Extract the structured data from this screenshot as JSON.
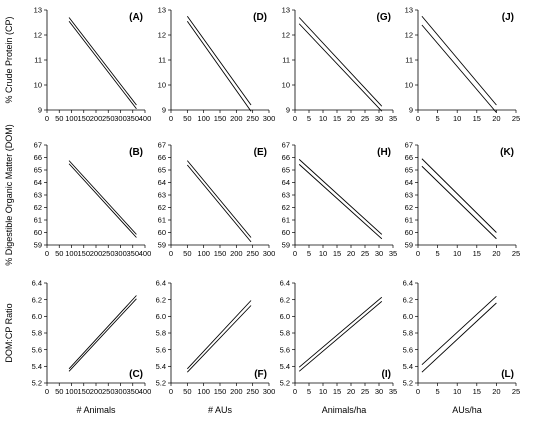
{
  "figure": {
    "row_titles": [
      "% Crude Protein (CP)",
      "% Digestible Organic Matter (DOM)",
      "DOM:CP Ratio"
    ],
    "column_titles": [
      "# Animals",
      "# AUs",
      "Animals/ha",
      "AUs/ha"
    ]
  },
  "chart_data": [
    {
      "type": "line",
      "panel_label": "(A)",
      "xlabel": "",
      "ylabel": "% Crude Protein (CP)",
      "x_ticks": [
        0,
        50,
        100,
        150,
        200,
        250,
        300,
        350,
        400
      ],
      "y_ticks": [
        9,
        10,
        11,
        12,
        13
      ],
      "xlim": [
        0,
        400
      ],
      "ylim": [
        9,
        13
      ],
      "series": [
        {
          "x": [
            90,
            365
          ],
          "y": [
            12.7,
            9.2
          ]
        },
        {
          "x": [
            90,
            365
          ],
          "y": [
            12.55,
            9.05
          ]
        }
      ]
    },
    {
      "type": "line",
      "panel_label": "(D)",
      "xlabel": "",
      "ylabel": "",
      "x_ticks": [
        0,
        50,
        100,
        150,
        200,
        250,
        300
      ],
      "y_ticks": [
        9,
        10,
        11,
        12,
        13
      ],
      "xlim": [
        0,
        300
      ],
      "ylim": [
        9,
        13
      ],
      "series": [
        {
          "x": [
            50,
            245
          ],
          "y": [
            12.75,
            9.2
          ]
        },
        {
          "x": [
            50,
            245
          ],
          "y": [
            12.55,
            8.95
          ]
        }
      ]
    },
    {
      "type": "line",
      "panel_label": "(G)",
      "xlabel": "",
      "ylabel": "",
      "x_ticks": [
        0,
        5,
        10,
        15,
        20,
        25,
        30,
        35
      ],
      "y_ticks": [
        9,
        10,
        11,
        12,
        13
      ],
      "xlim": [
        0,
        35
      ],
      "ylim": [
        9,
        13
      ],
      "series": [
        {
          "x": [
            1.5,
            31
          ],
          "y": [
            12.7,
            9.15
          ]
        },
        {
          "x": [
            1.5,
            31
          ],
          "y": [
            12.45,
            8.95
          ]
        }
      ]
    },
    {
      "type": "line",
      "panel_label": "(J)",
      "xlabel": "",
      "ylabel": "",
      "x_ticks": [
        0,
        5,
        10,
        15,
        20,
        25
      ],
      "y_ticks": [
        9,
        10,
        11,
        12,
        13
      ],
      "xlim": [
        0,
        25
      ],
      "ylim": [
        9,
        13
      ],
      "series": [
        {
          "x": [
            1,
            20
          ],
          "y": [
            12.75,
            9.2
          ]
        },
        {
          "x": [
            1,
            20
          ],
          "y": [
            12.4,
            8.9
          ]
        }
      ]
    },
    {
      "type": "line",
      "panel_label": "(B)",
      "xlabel": "",
      "ylabel": "% Digestible Organic Matter (DOM)",
      "x_ticks": [
        0,
        50,
        100,
        150,
        200,
        250,
        300,
        350,
        400
      ],
      "y_ticks": [
        59,
        60,
        61,
        62,
        63,
        64,
        65,
        66,
        67
      ],
      "xlim": [
        0,
        400
      ],
      "ylim": [
        59,
        67
      ],
      "series": [
        {
          "x": [
            90,
            365
          ],
          "y": [
            65.75,
            59.85
          ]
        },
        {
          "x": [
            90,
            365
          ],
          "y": [
            65.5,
            59.6
          ]
        }
      ]
    },
    {
      "type": "line",
      "panel_label": "(E)",
      "xlabel": "",
      "ylabel": "",
      "x_ticks": [
        0,
        50,
        100,
        150,
        200,
        250,
        300
      ],
      "y_ticks": [
        59,
        60,
        61,
        62,
        63,
        64,
        65,
        66,
        67
      ],
      "xlim": [
        0,
        300
      ],
      "ylim": [
        59,
        67
      ],
      "series": [
        {
          "x": [
            50,
            245
          ],
          "y": [
            65.75,
            59.6
          ]
        },
        {
          "x": [
            50,
            245
          ],
          "y": [
            65.4,
            59.25
          ]
        }
      ]
    },
    {
      "type": "line",
      "panel_label": "(H)",
      "xlabel": "",
      "ylabel": "",
      "x_ticks": [
        0,
        5,
        10,
        15,
        20,
        25,
        30,
        35
      ],
      "y_ticks": [
        59,
        60,
        61,
        62,
        63,
        64,
        65,
        66,
        67
      ],
      "xlim": [
        0,
        35
      ],
      "ylim": [
        59,
        67
      ],
      "series": [
        {
          "x": [
            1.5,
            31
          ],
          "y": [
            65.85,
            59.85
          ]
        },
        {
          "x": [
            1.5,
            31
          ],
          "y": [
            65.45,
            59.5
          ]
        }
      ]
    },
    {
      "type": "line",
      "panel_label": "(K)",
      "xlabel": "",
      "ylabel": "",
      "x_ticks": [
        0,
        5,
        10,
        15,
        20,
        25
      ],
      "y_ticks": [
        59,
        60,
        61,
        62,
        63,
        64,
        65,
        66,
        67
      ],
      "xlim": [
        0,
        25
      ],
      "ylim": [
        59,
        67
      ],
      "series": [
        {
          "x": [
            1,
            20
          ],
          "y": [
            65.9,
            60.0
          ]
        },
        {
          "x": [
            1,
            20
          ],
          "y": [
            65.3,
            59.5
          ]
        }
      ]
    },
    {
      "type": "line",
      "panel_label": "(C)",
      "xlabel": "# Animals",
      "ylabel": "DOM:CP Ratio",
      "x_ticks": [
        0,
        50,
        100,
        150,
        200,
        250,
        300,
        350,
        400
      ],
      "y_ticks": [
        5.2,
        5.4,
        5.6,
        5.8,
        6.0,
        6.2,
        6.4
      ],
      "xlim": [
        0,
        400
      ],
      "ylim": [
        5.2,
        6.4
      ],
      "series": [
        {
          "x": [
            90,
            365
          ],
          "y": [
            5.37,
            6.25
          ]
        },
        {
          "x": [
            90,
            365
          ],
          "y": [
            5.34,
            6.21
          ]
        }
      ]
    },
    {
      "type": "line",
      "panel_label": "(F)",
      "xlabel": "# AUs",
      "ylabel": "",
      "x_ticks": [
        0,
        50,
        100,
        150,
        200,
        250,
        300
      ],
      "y_ticks": [
        5.2,
        5.4,
        5.6,
        5.8,
        6.0,
        6.2,
        6.4
      ],
      "xlim": [
        0,
        300
      ],
      "ylim": [
        5.2,
        6.4
      ],
      "series": [
        {
          "x": [
            50,
            245
          ],
          "y": [
            5.37,
            6.19
          ]
        },
        {
          "x": [
            50,
            245
          ],
          "y": [
            5.33,
            6.13
          ]
        }
      ]
    },
    {
      "type": "line",
      "panel_label": "(I)",
      "xlabel": "Animals/ha",
      "ylabel": "",
      "x_ticks": [
        0,
        5,
        10,
        15,
        20,
        25,
        30,
        35
      ],
      "y_ticks": [
        5.2,
        5.4,
        5.6,
        5.8,
        6.0,
        6.2,
        6.4
      ],
      "xlim": [
        0,
        35
      ],
      "ylim": [
        5.2,
        6.4
      ],
      "series": [
        {
          "x": [
            1.5,
            31
          ],
          "y": [
            5.39,
            6.23
          ]
        },
        {
          "x": [
            1.5,
            31
          ],
          "y": [
            5.34,
            6.18
          ]
        }
      ]
    },
    {
      "type": "line",
      "panel_label": "(L)",
      "xlabel": "AUs/ha",
      "ylabel": "",
      "x_ticks": [
        0,
        5,
        10,
        15,
        20,
        25
      ],
      "y_ticks": [
        5.2,
        5.4,
        5.6,
        5.8,
        6.0,
        6.2,
        6.4
      ],
      "xlim": [
        0,
        25
      ],
      "ylim": [
        5.2,
        6.4
      ],
      "series": [
        {
          "x": [
            1,
            20
          ],
          "y": [
            5.42,
            6.24
          ]
        },
        {
          "x": [
            1,
            20
          ],
          "y": [
            5.33,
            6.16
          ]
        }
      ]
    }
  ]
}
